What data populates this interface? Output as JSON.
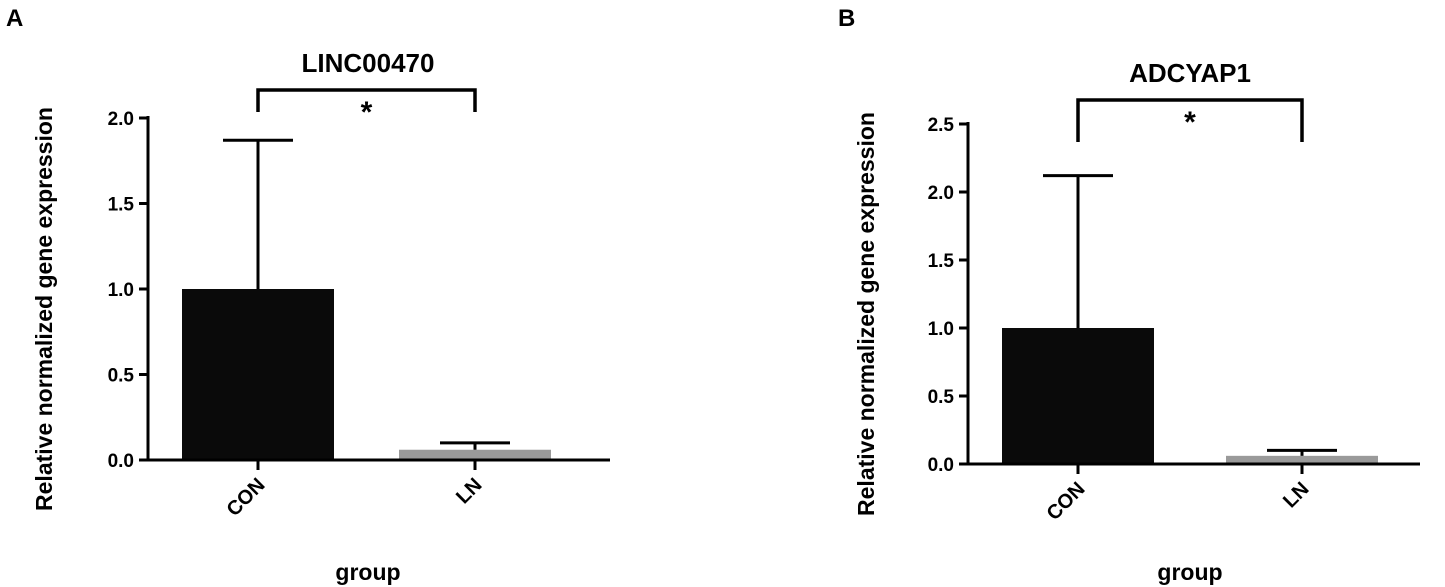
{
  "chart_data": [
    {
      "type": "bar",
      "panel": "A",
      "title": "LINC00470",
      "xlabel": "group",
      "ylabel": "Relative normalized gene expression",
      "categories": [
        "CON",
        "LN"
      ],
      "values": [
        1.0,
        0.06
      ],
      "errors": [
        0.87,
        0.04
      ],
      "ylim": [
        0,
        2.0
      ],
      "yticks": [
        "0.0",
        "0.5",
        "1.0",
        "1.5",
        "2.0"
      ],
      "significance": {
        "label": "*",
        "between": [
          "CON",
          "LN"
        ]
      },
      "bar_colors": [
        "#0a0a0a",
        "#9a9a9a"
      ],
      "grid": false,
      "legend": "none"
    },
    {
      "type": "bar",
      "panel": "B",
      "title": "ADCYAP1",
      "xlabel": "group",
      "ylabel": "Relative normalized gene expression",
      "categories": [
        "CON",
        "LN"
      ],
      "values": [
        1.0,
        0.06
      ],
      "errors": [
        1.12,
        0.04
      ],
      "ylim": [
        0,
        2.5
      ],
      "yticks": [
        "0.0",
        "0.5",
        "1.0",
        "1.5",
        "2.0",
        "2.5"
      ],
      "significance": {
        "label": "*",
        "between": [
          "CON",
          "LN"
        ]
      },
      "bar_colors": [
        "#0a0a0a",
        "#9a9a9a"
      ],
      "grid": false,
      "legend": "none"
    }
  ]
}
